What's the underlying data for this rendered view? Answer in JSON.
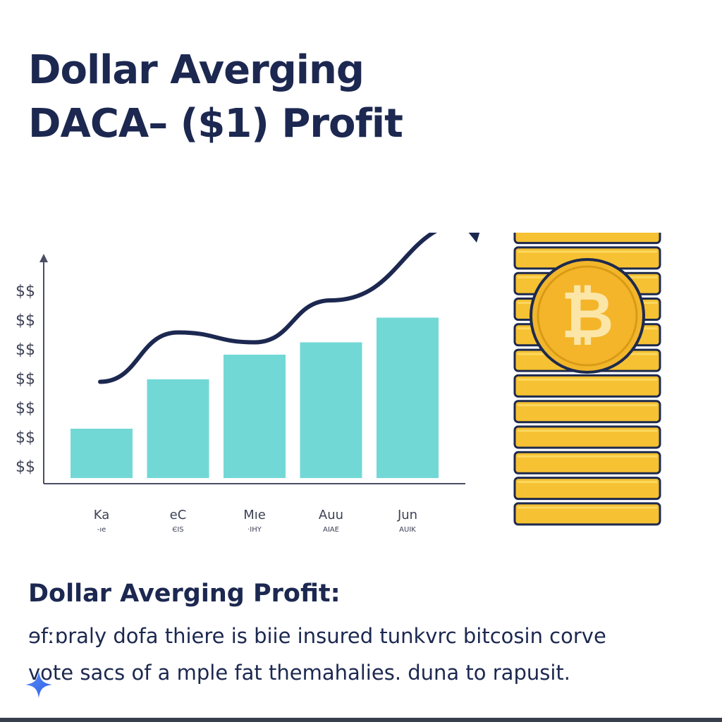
{
  "header": {
    "title_line1": "Dollar Averging",
    "title_line2": "DACA– ($1) Profit"
  },
  "chart_data": {
    "type": "bar",
    "categories": [
      "Ka",
      "eC",
      "Mıe",
      "Auu",
      "Jun"
    ],
    "category_sublabels": [
      "-ıe",
      "ЄIS",
      "·IHY",
      "AIAE",
      "AUIK"
    ],
    "values": [
      2,
      4,
      5,
      5.5,
      6.5
    ],
    "trend_line": [
      3.9,
      5.9,
      5.5,
      7.2,
      10.4
    ],
    "ytick_labels": [
      "$$",
      "$$",
      "$$",
      "$$",
      "$$",
      "$$",
      "$$"
    ],
    "ylim": [
      0,
      8
    ],
    "title": "",
    "xlabel": "",
    "ylabel": "",
    "grid": false,
    "legend": "none",
    "colors": {
      "bar": "#72d8d6",
      "line": "#1c2850",
      "axis": "#4a4f63",
      "coin": "#f6c132",
      "coin_edge": "#1d2a4e",
      "bitcoin_emblem": "#f4b52a"
    }
  },
  "illustration": {
    "coin_stack_icon": "bitcoin-coin-stack-icon",
    "coin_count": 14,
    "emblem_symbol": "₿"
  },
  "section": {
    "subtitle": "Dollar Averging Profit:",
    "body_line1": "ɘfːɒraly dofa thiere is biie insured tunkvrc bitcosin corve",
    "body_line2": "vote sacs of a mple fat themahalies. duna to rapusit."
  },
  "decor": {
    "spark_icon": "sparkle-icon"
  }
}
